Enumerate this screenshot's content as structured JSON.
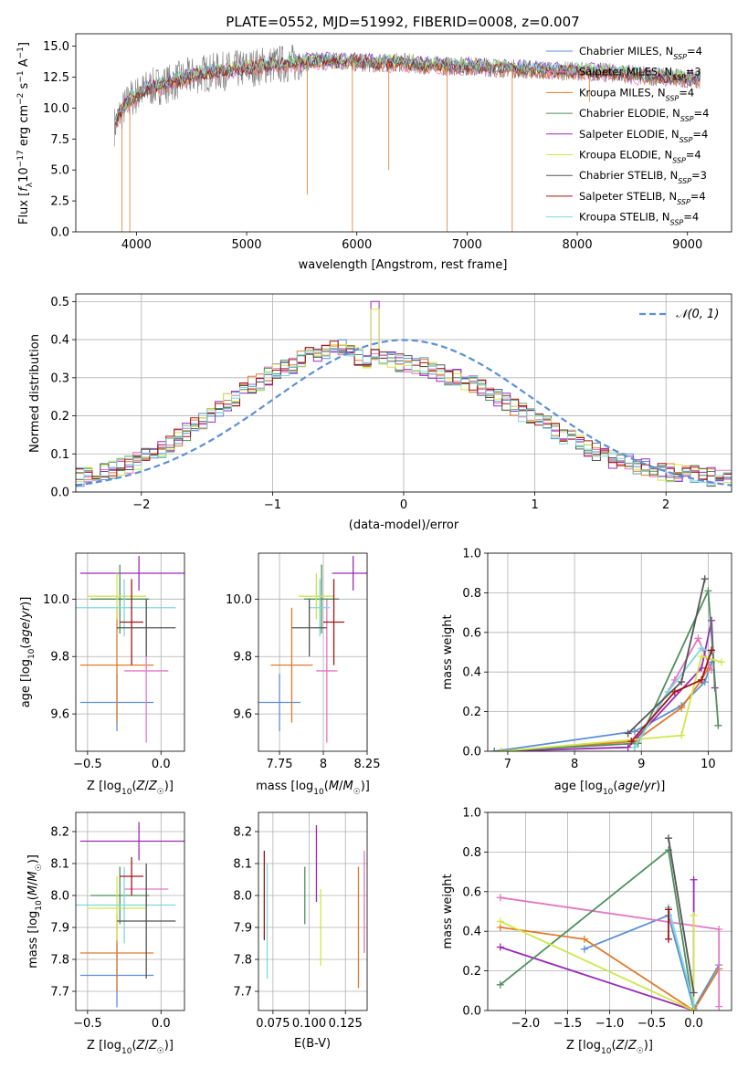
{
  "chart_data": [
    {
      "type": "line",
      "panel": "spectrum",
      "title": "PLATE=0552, MJD=51992, FIBERID=0008, z=0.007",
      "xlabel": "wavelength [Angstrom, rest frame]",
      "ylabel": "Flux [f_λ 10^-17 erg cm^-2 s^-1 A^-1]",
      "xlim": [
        3450,
        9400
      ],
      "ylim": [
        0,
        16
      ],
      "xticks": [
        4000,
        5000,
        6000,
        7000,
        8000,
        9000
      ],
      "yticks": [
        0.0,
        2.5,
        5.0,
        7.5,
        10.0,
        12.5,
        15.0
      ],
      "grid": false,
      "legend_position": "top-right",
      "legend": [
        {
          "label": "Chabrier MILES, N_SSP=4",
          "color": "#5b8fd6"
        },
        {
          "label": "Salpeter MILES, N_SSP=3",
          "color": "#e377c2"
        },
        {
          "label": "Kroupa MILES, N_SSP=4",
          "color": "#e07b2a"
        },
        {
          "label": "Chabrier ELODIE, N_SSP=4",
          "color": "#4f8f5f"
        },
        {
          "label": "Salpeter ELODIE, N_SSP=4",
          "color": "#9a2bb8"
        },
        {
          "label": "Kroupa ELODIE, N_SSP=4",
          "color": "#d0e64a"
        },
        {
          "label": "Chabrier STELIB, N_SSP=3",
          "color": "#555555"
        },
        {
          "label": "Salpeter STELIB, N_SSP=4",
          "color": "#a31515"
        },
        {
          "label": "Kroupa STELIB, N_SSP=4",
          "color": "#7fd7dc"
        }
      ],
      "data_envelope": {
        "x": [
          3800,
          3850,
          3900,
          3950,
          4000,
          4100,
          4200,
          4300,
          4400,
          4600,
          4800,
          5000,
          5200,
          5400,
          5600,
          5800,
          6000,
          6200,
          6400,
          6600,
          6800,
          7000,
          7200,
          7400,
          7600,
          7800,
          8000,
          8200,
          8400,
          8600,
          8800,
          9000,
          9120
        ],
        "y": [
          8.5,
          9.5,
          10.2,
          10.8,
          11.0,
          11.6,
          11.8,
          12.0,
          12.3,
          12.8,
          13.0,
          13.2,
          13.5,
          13.6,
          13.8,
          13.8,
          13.7,
          13.6,
          13.7,
          13.5,
          13.4,
          13.4,
          13.3,
          13.2,
          13.1,
          13.0,
          13.0,
          12.9,
          12.8,
          12.6,
          12.5,
          12.4,
          12.3
        ]
      }
    },
    {
      "type": "histogram",
      "panel": "residuals",
      "xlabel": "(data-model)/error",
      "ylabel": "Normed distribution",
      "xlim": [
        -2.5,
        2.5
      ],
      "ylim": [
        0,
        0.52
      ],
      "xticks": [
        -2,
        -1,
        0,
        1,
        2
      ],
      "xtick_labels": [
        "−2",
        "−1",
        "0",
        "1",
        "2"
      ],
      "yticks": [
        0.0,
        0.1,
        0.2,
        0.3,
        0.4,
        0.5
      ],
      "grid": true,
      "legend_position": "top-right",
      "legend": [
        {
          "label": "𝒩(0, 1)",
          "color": "#5b8fd6",
          "style": "dashed"
        }
      ],
      "bin_width": 0.1,
      "bin_start": -2.5,
      "envelope": [
        0.04,
        0.045,
        0.05,
        0.055,
        0.06,
        0.065,
        0.07,
        0.08,
        0.09,
        0.1,
        0.115,
        0.13,
        0.145,
        0.16,
        0.175,
        0.19,
        0.205,
        0.22,
        0.235,
        0.25,
        0.265,
        0.28,
        0.29,
        0.305,
        0.315,
        0.325,
        0.335,
        0.345,
        0.36,
        0.365,
        0.375,
        0.38,
        0.38,
        0.36,
        0.355,
        0.35,
        0.35,
        0.345,
        0.345,
        0.34,
        0.34,
        0.335,
        0.33,
        0.32,
        0.315,
        0.305,
        0.3,
        0.29,
        0.28,
        0.27,
        0.26,
        0.25,
        0.235,
        0.225,
        0.21,
        0.2,
        0.19,
        0.175,
        0.165,
        0.15,
        0.14,
        0.13,
        0.115,
        0.105,
        0.095,
        0.085,
        0.08,
        0.075,
        0.07,
        0.065,
        0.06,
        0.055,
        0.05,
        0.05,
        0.045,
        0.045,
        0.04,
        0.04,
        0.04,
        0.04
      ]
    },
    {
      "type": "scatter",
      "panel": "age_vs_Z",
      "xlabel": "Z [log10(Z/Z☉)]",
      "ylabel": "age  [log10(age/yr)]",
      "xlim": [
        -0.58,
        0.16
      ],
      "ylim": [
        9.47,
        10.16
      ],
      "xticks": [
        -0.5,
        0.0
      ],
      "xtick_labels": [
        "−0.5",
        "0.0"
      ],
      "yticks": [
        9.6,
        9.8,
        10.0
      ],
      "grid": true,
      "points": [
        {
          "color": "#5b8fd6",
          "x": -0.3,
          "xerr": 0.25,
          "y": 9.64,
          "yerr": 0.1
        },
        {
          "color": "#e07b2a",
          "x": -0.3,
          "xerr": 0.25,
          "y": 9.77,
          "yerr": 0.2
        },
        {
          "color": "#e377c2",
          "x": -0.1,
          "xerr": 0.15,
          "y": 9.75,
          "yerr": 0.25
        },
        {
          "color": "#9a2bb8",
          "x": -0.15,
          "xerr": 0.4,
          "y": 10.09,
          "yerr": 0.06
        },
        {
          "color": "#4f8f5f",
          "x": -0.28,
          "xerr": 0.2,
          "y": 10.0,
          "yerr": 0.12
        },
        {
          "color": "#d0e64a",
          "x": -0.3,
          "xerr": 0.2,
          "y": 10.01,
          "yerr": 0.08
        },
        {
          "color": "#7fd7dc",
          "x": -0.25,
          "xerr": 0.35,
          "y": 9.97,
          "yerr": 0.1
        },
        {
          "color": "#555555",
          "x": -0.1,
          "xerr": 0.2,
          "y": 9.9,
          "yerr": 0.1
        },
        {
          "color": "#a31515",
          "x": -0.2,
          "xerr": 0.08,
          "y": 9.92,
          "yerr": 0.15
        }
      ]
    },
    {
      "type": "scatter",
      "panel": "age_vs_mass",
      "xlabel": "mass [log10(M/M☉)]",
      "ylabel": "",
      "xlim": [
        7.63,
        8.25
      ],
      "ylim": [
        9.47,
        10.16
      ],
      "xticks": [
        7.75,
        8.0,
        8.25
      ],
      "yticks": [
        9.6,
        9.8,
        10.0
      ],
      "grid": true,
      "points": [
        {
          "color": "#5b8fd6",
          "x": 7.75,
          "xerr": 0.12,
          "y": 9.64,
          "yerr": 0.1
        },
        {
          "color": "#e07b2a",
          "x": 7.82,
          "xerr": 0.12,
          "y": 9.77,
          "yerr": 0.2
        },
        {
          "color": "#e377c2",
          "x": 8.02,
          "xerr": 0.06,
          "y": 9.75,
          "yerr": 0.25
        },
        {
          "color": "#9a2bb8",
          "x": 8.17,
          "xerr": 0.12,
          "y": 10.09,
          "yerr": 0.06
        },
        {
          "color": "#4f8f5f",
          "x": 7.99,
          "xerr": 0.1,
          "y": 10.0,
          "yerr": 0.12
        },
        {
          "color": "#d0e64a",
          "x": 7.96,
          "xerr": 0.1,
          "y": 10.01,
          "yerr": 0.08
        },
        {
          "color": "#7fd7dc",
          "x": 7.98,
          "xerr": 0.06,
          "y": 9.97,
          "yerr": 0.1
        },
        {
          "color": "#555555",
          "x": 7.92,
          "xerr": 0.1,
          "y": 9.9,
          "yerr": 0.1
        },
        {
          "color": "#a31515",
          "x": 8.06,
          "xerr": 0.06,
          "y": 9.92,
          "yerr": 0.15
        }
      ]
    },
    {
      "type": "line",
      "panel": "weight_vs_age",
      "xlabel": "age  [log10(age/yr)]",
      "ylabel": "mass weight",
      "xlim": [
        6.7,
        10.35
      ],
      "ylim": [
        0,
        1.0
      ],
      "xticks": [
        7,
        8,
        9,
        10
      ],
      "yticks": [
        0.0,
        0.2,
        0.4,
        0.6,
        0.8,
        1.0
      ],
      "grid": true,
      "series": [
        {
          "color": "#5b8fd6",
          "x": [
            6.8,
            8.9,
            9.6,
            9.95,
            10.05
          ],
          "y": [
            0.0,
            0.1,
            0.23,
            0.35,
            0.45
          ]
        },
        {
          "color": "#e07b2a",
          "x": [
            6.9,
            8.9,
            9.6,
            9.9,
            10.0
          ],
          "y": [
            0.0,
            0.05,
            0.22,
            0.36,
            0.42
          ]
        },
        {
          "color": "#e377c2",
          "x": [
            8.9,
            9.5,
            9.85,
            10.05
          ],
          "y": [
            0.02,
            0.36,
            0.57,
            0.41
          ]
        },
        {
          "color": "#9a2bb8",
          "x": [
            6.9,
            8.8,
            9.9,
            10.05,
            10.1
          ],
          "y": [
            0.0,
            0.02,
            0.42,
            0.66,
            0.32
          ]
        },
        {
          "color": "#4f8f5f",
          "x": [
            6.8,
            8.95,
            10.0,
            10.15
          ],
          "y": [
            0.0,
            0.04,
            0.81,
            0.13
          ]
        },
        {
          "color": "#d0e64a",
          "x": [
            6.9,
            9.6,
            9.9,
            10.2
          ],
          "y": [
            0.0,
            0.08,
            0.48,
            0.45
          ]
        },
        {
          "color": "#7fd7dc",
          "x": [
            8.9,
            9.4,
            9.9,
            10.05
          ],
          "y": [
            0.02,
            0.3,
            0.52,
            0.5
          ]
        },
        {
          "color": "#555555",
          "x": [
            8.8,
            9.6,
            9.95
          ],
          "y": [
            0.09,
            0.35,
            0.87
          ]
        },
        {
          "color": "#a31515",
          "x": [
            8.85,
            9.5,
            9.9,
            10.05
          ],
          "y": [
            0.05,
            0.3,
            0.36,
            0.51
          ]
        }
      ]
    },
    {
      "type": "scatter",
      "panel": "mass_vs_Z",
      "xlabel": "Z [log10(Z/Z☉)]",
      "ylabel": "mass [log10(M/M☉)]",
      "xlim": [
        -0.58,
        0.16
      ],
      "ylim": [
        7.64,
        8.26
      ],
      "xticks": [
        -0.5,
        0.0
      ],
      "xtick_labels": [
        "−0.5",
        "0.0"
      ],
      "yticks": [
        7.7,
        7.8,
        7.9,
        8.0,
        8.1,
        8.2
      ],
      "grid": true,
      "points": [
        {
          "color": "#5b8fd6",
          "x": -0.3,
          "xerr": 0.25,
          "y": 7.75,
          "yerr": 0.1
        },
        {
          "color": "#e07b2a",
          "x": -0.3,
          "xerr": 0.25,
          "y": 7.82,
          "yerr": 0.12
        },
        {
          "color": "#e377c2",
          "x": -0.1,
          "xerr": 0.15,
          "y": 8.02,
          "yerr": 0.06
        },
        {
          "color": "#9a2bb8",
          "x": -0.15,
          "xerr": 0.4,
          "y": 8.17,
          "yerr": 0.06
        },
        {
          "color": "#4f8f5f",
          "x": -0.28,
          "xerr": 0.2,
          "y": 8.0,
          "yerr": 0.09
        },
        {
          "color": "#d0e64a",
          "x": -0.3,
          "xerr": 0.2,
          "y": 7.96,
          "yerr": 0.1
        },
        {
          "color": "#7fd7dc",
          "x": -0.25,
          "xerr": 0.35,
          "y": 7.97,
          "yerr": 0.12
        },
        {
          "color": "#555555",
          "x": -0.1,
          "xerr": 0.2,
          "y": 7.92,
          "yerr": 0.18
        },
        {
          "color": "#a31515",
          "x": -0.2,
          "xerr": 0.08,
          "y": 8.06,
          "yerr": 0.06
        }
      ]
    },
    {
      "type": "scatter",
      "panel": "mass_vs_ebv",
      "xlabel": "E(B-V)",
      "ylabel": "",
      "xlim": [
        0.065,
        0.14
      ],
      "ylim": [
        7.64,
        8.26
      ],
      "xticks": [
        0.075,
        0.1,
        0.125
      ],
      "xtick_labels": [
        "0.075",
        "0.100",
        "0.125"
      ],
      "yticks": [
        7.7,
        7.8,
        7.9,
        8.0,
        8.1,
        8.2
      ],
      "grid": true,
      "points": [
        {
          "color": "#a31515",
          "x": 0.069,
          "y": 8.0,
          "yerr": 0.14
        },
        {
          "color": "#7fd7dc",
          "x": 0.071,
          "y": 7.92,
          "yerr": 0.18
        },
        {
          "color": "#4f8f5f",
          "x": 0.097,
          "y": 8.0,
          "yerr": 0.09
        },
        {
          "color": "#9a2bb8",
          "x": 0.105,
          "y": 8.1,
          "yerr": 0.12
        },
        {
          "color": "#d0e64a",
          "x": 0.108,
          "y": 7.9,
          "yerr": 0.12
        },
        {
          "color": "#e07b2a",
          "x": 0.134,
          "y": 7.9,
          "yerr": 0.19
        },
        {
          "color": "#e377c2",
          "x": 0.138,
          "y": 7.98,
          "yerr": 0.16
        }
      ]
    },
    {
      "type": "line",
      "panel": "weight_vs_Z",
      "xlabel": "Z [log10(Z/Z☉)]",
      "ylabel": "mass weight",
      "xlim": [
        -2.45,
        0.45
      ],
      "ylim": [
        0,
        1.0
      ],
      "xticks": [
        -2.0,
        -1.5,
        -1.0,
        -0.5,
        0.0
      ],
      "xtick_labels": [
        "−2.0",
        "−1.5",
        "−1.0",
        "−0.5",
        "0.0"
      ],
      "yticks": [
        0.0,
        0.2,
        0.4,
        0.6,
        0.8,
        1.0
      ],
      "grid": true,
      "series": [
        {
          "color": "#5b8fd6",
          "x": [
            -1.3,
            -0.3,
            0.0,
            0.3
          ],
          "y": [
            0.31,
            0.48,
            0.01,
            0.23
          ]
        },
        {
          "color": "#e07b2a",
          "x": [
            -2.3,
            -1.3,
            0.0,
            0.3
          ],
          "y": [
            0.42,
            0.36,
            0.0,
            0.21
          ]
        },
        {
          "color": "#e377c2",
          "x": [
            -2.3,
            0.3,
            0.3
          ],
          "y": [
            0.57,
            0.41,
            0.02
          ]
        },
        {
          "color": "#9a2bb8",
          "x": [
            -2.3,
            0.0,
            0.0
          ],
          "y": [
            0.32,
            0.0,
            0.66
          ]
        },
        {
          "color": "#4f8f5f",
          "x": [
            -2.3,
            -0.3,
            0.0
          ],
          "y": [
            0.13,
            0.81,
            0.0
          ]
        },
        {
          "color": "#d0e64a",
          "x": [
            -2.3,
            0.0,
            0.0
          ],
          "y": [
            0.45,
            0.0,
            0.48
          ]
        },
        {
          "color": "#7fd7dc",
          "x": [
            -0.3,
            0.0
          ],
          "y": [
            0.52,
            0.03
          ]
        },
        {
          "color": "#555555",
          "x": [
            -0.3,
            0.0
          ],
          "y": [
            0.87,
            0.09
          ]
        },
        {
          "color": "#a31515",
          "x": [
            -0.3,
            -0.3
          ],
          "y": [
            0.51,
            0.36
          ]
        }
      ]
    }
  ]
}
